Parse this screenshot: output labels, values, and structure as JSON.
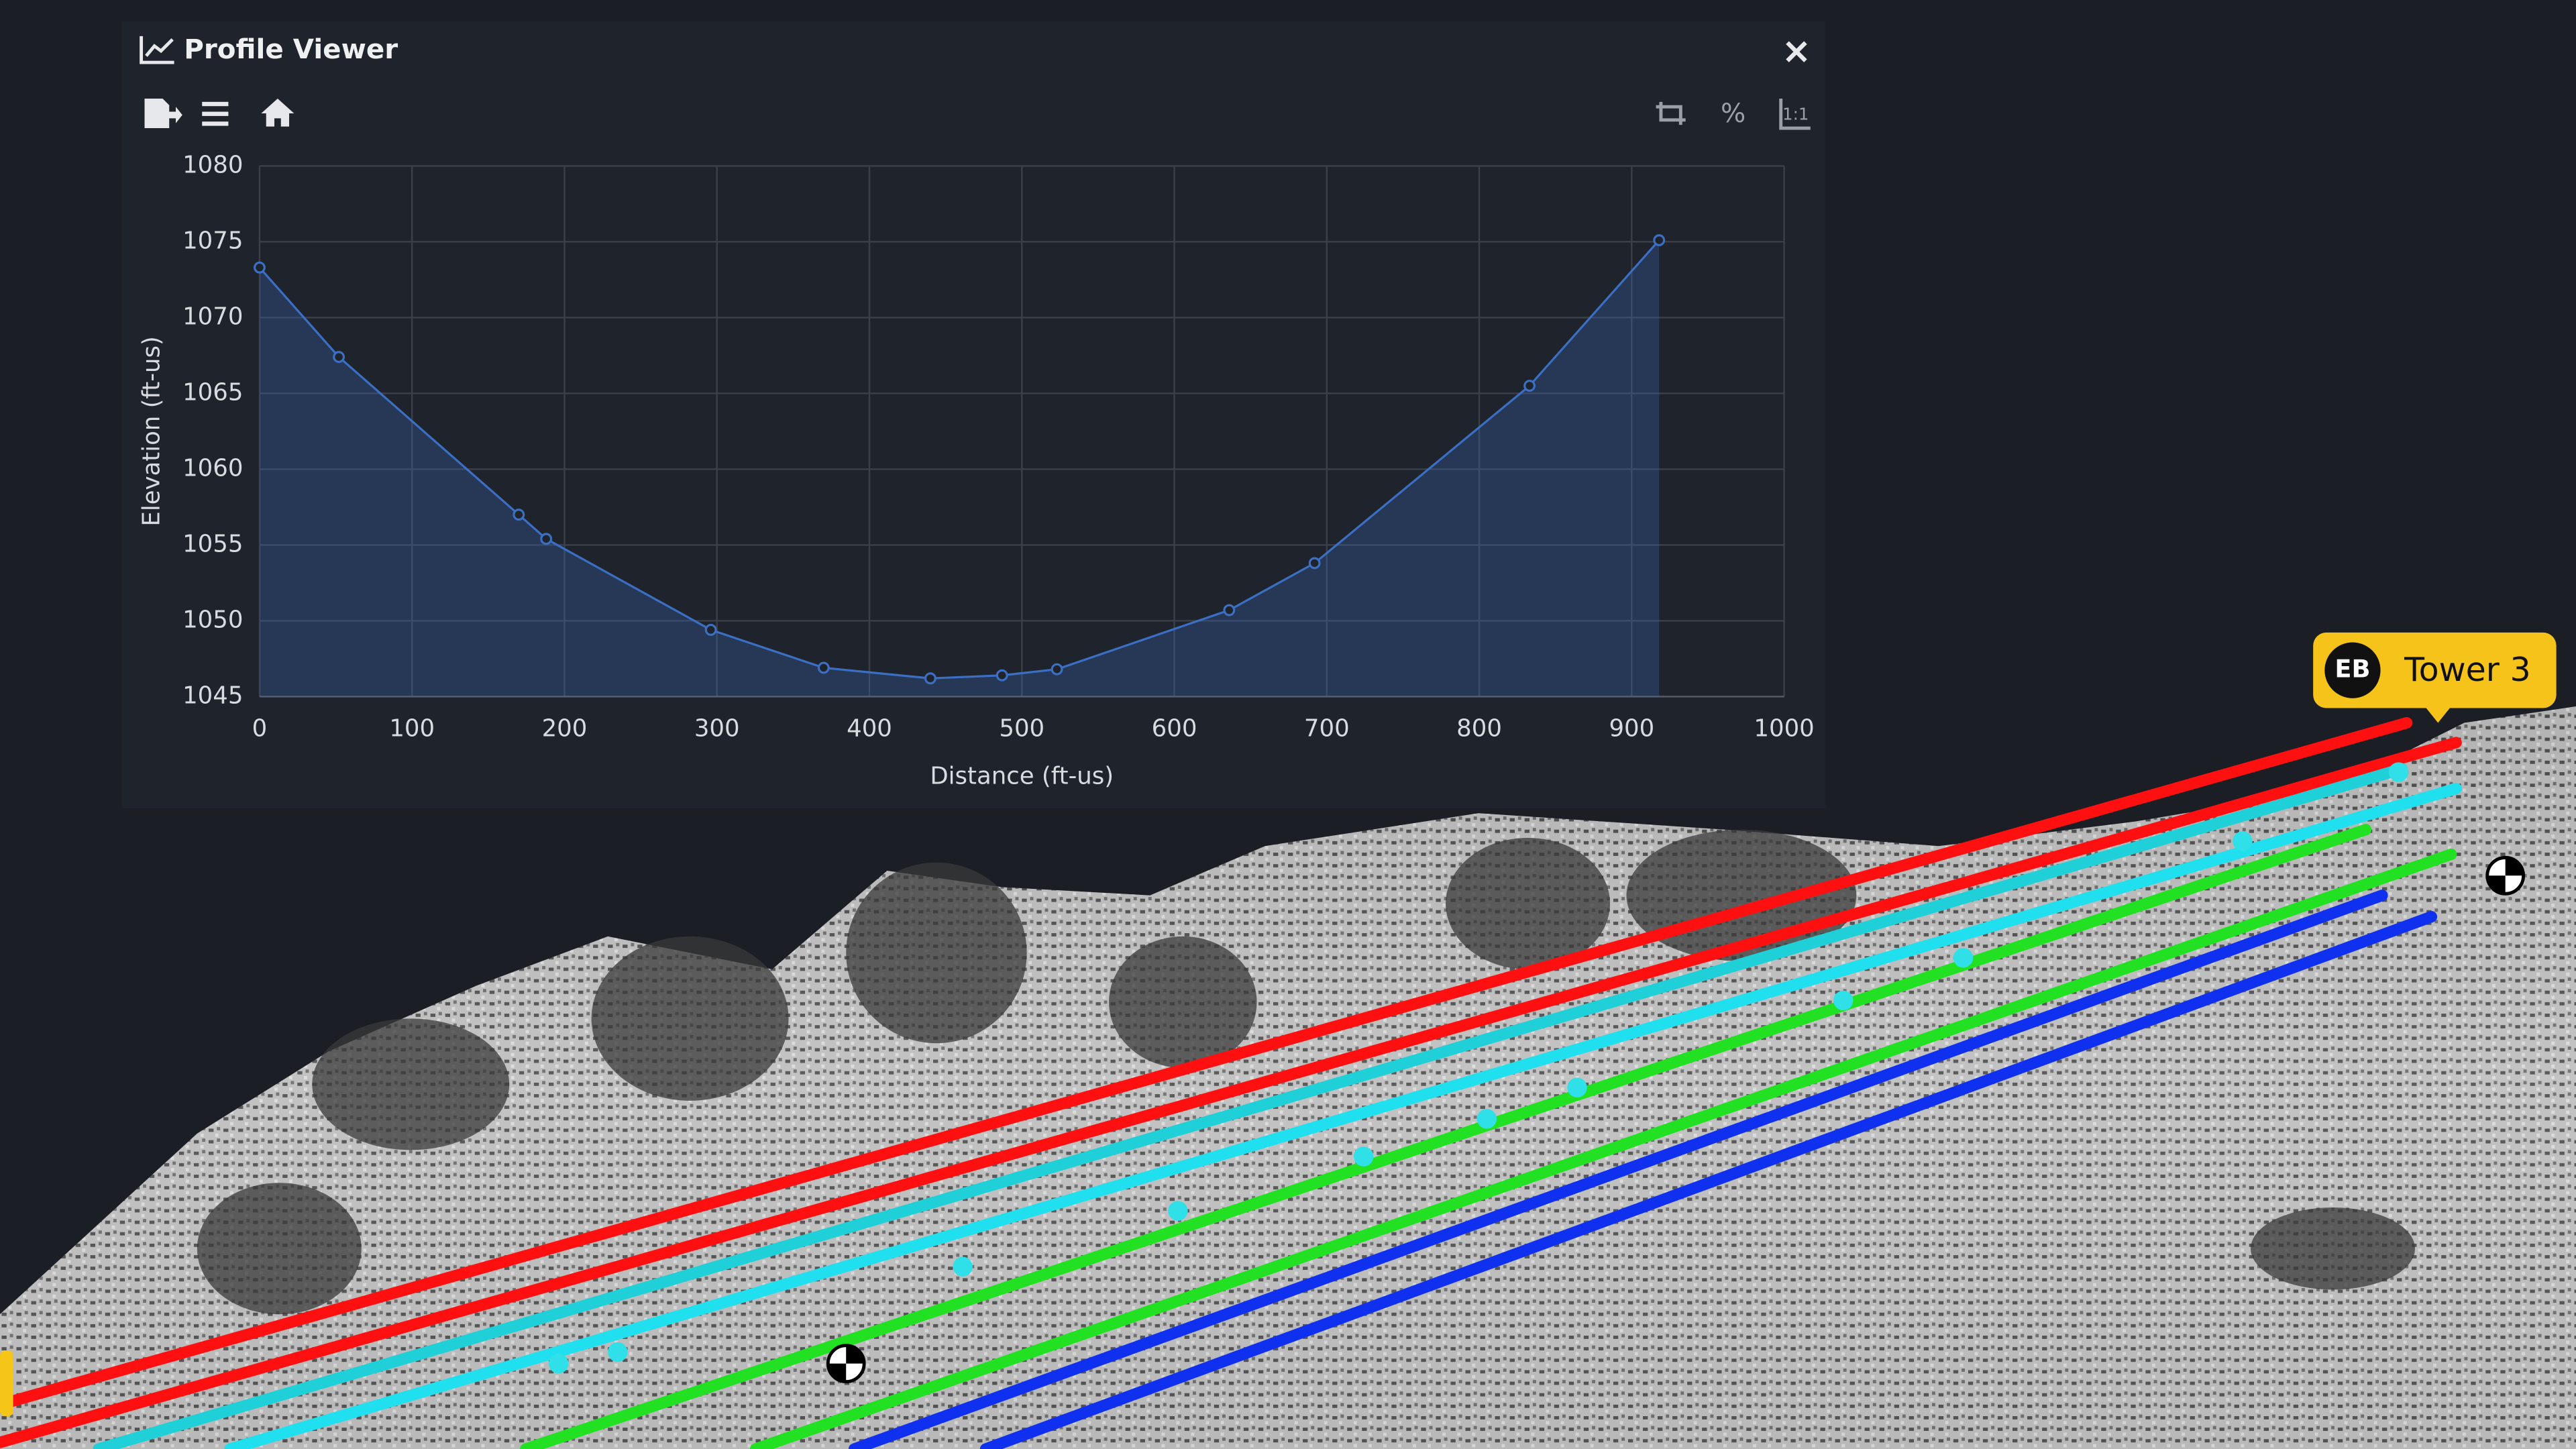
{
  "panel": {
    "title": "Profile Viewer",
    "toolbar": {
      "percent": "%",
      "ratio": "1:1"
    }
  },
  "scene": {
    "tower_label": {
      "badge": "EB",
      "text": "Tower 3"
    }
  },
  "chart_data": {
    "type": "line",
    "x_label": "Distance (ft-us)",
    "y_label": "Elevation (ft-us)",
    "x": [
      0,
      52,
      170,
      188,
      296,
      370,
      440,
      487,
      523,
      636,
      692,
      833,
      918
    ],
    "series": [
      {
        "color": "#3b6fc4",
        "values": [
          1073.3,
          1067.4,
          1057.0,
          1055.4,
          1049.4,
          1046.9,
          1046.2,
          1046.4,
          1046.8,
          1050.7,
          1053.8,
          1065.5,
          1075.1
        ]
      }
    ],
    "fill": true,
    "xlim": [
      0,
      1000
    ],
    "xticks": [
      0,
      100,
      200,
      300,
      400,
      500,
      600,
      700,
      800,
      900,
      1000
    ],
    "ylim": [
      1045,
      1080
    ],
    "yticks": [
      1045,
      1050,
      1055,
      1060,
      1065,
      1070,
      1075,
      1080
    ],
    "grid": true
  }
}
